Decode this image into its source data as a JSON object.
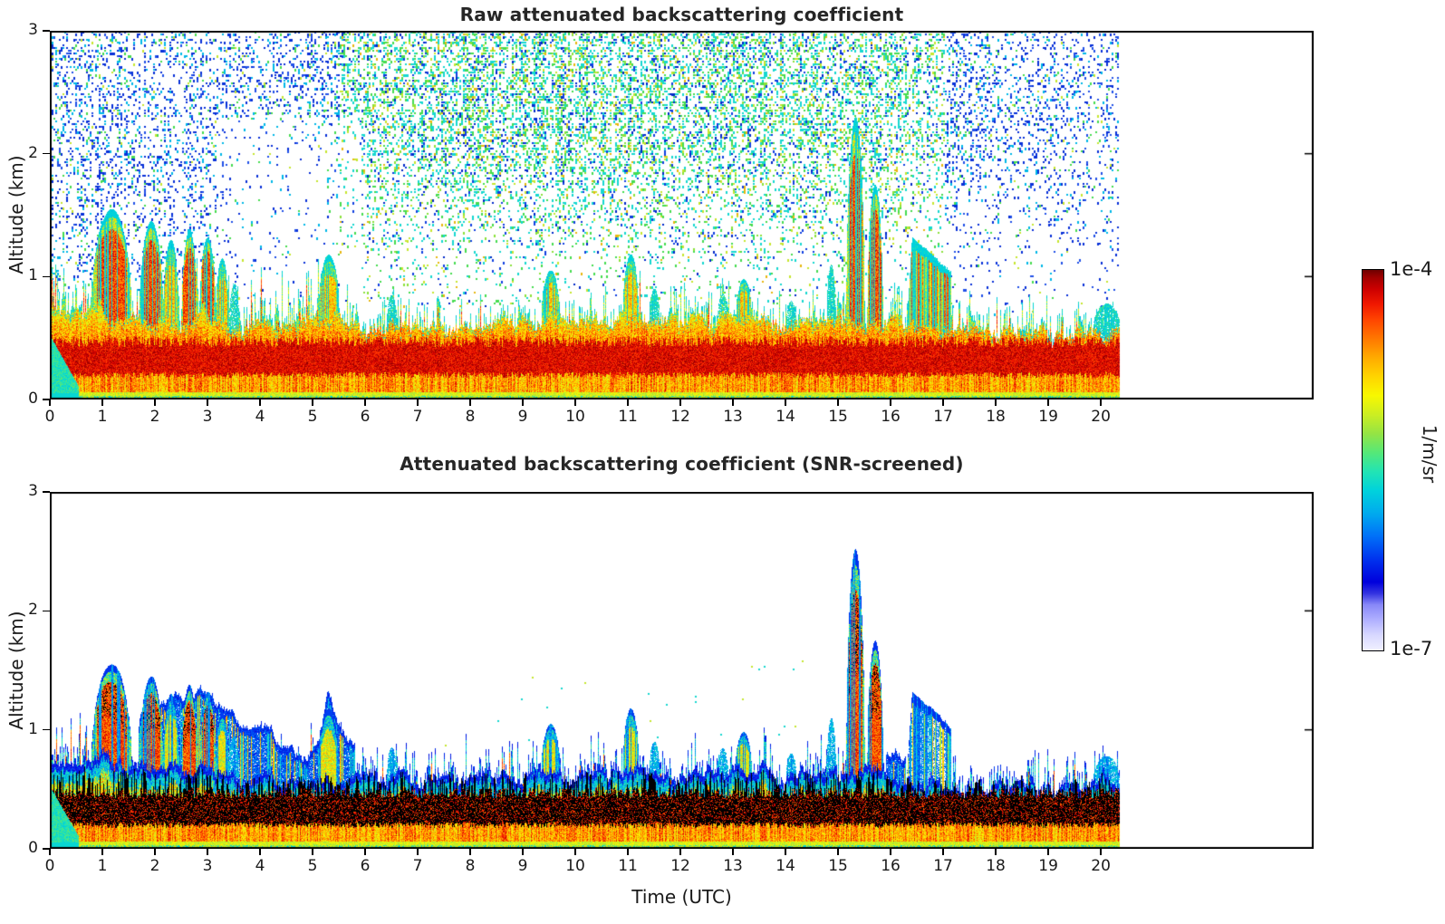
{
  "chart_data": {
    "type": "heatmap",
    "x_axis": {
      "label": "Time (UTC)",
      "ticks": [
        0,
        1,
        2,
        3,
        4,
        5,
        6,
        7,
        8,
        9,
        10,
        11,
        12,
        13,
        14,
        15,
        16,
        17,
        18,
        19,
        20
      ],
      "lim": [
        0,
        24.05
      ],
      "data_end_hour": 20.36
    },
    "y_axis": {
      "label": "Altitude (km)",
      "ticks": [
        0,
        1,
        2,
        3
      ],
      "lim": [
        0,
        3
      ]
    },
    "color_axis": {
      "max": "1e-4",
      "min": "1e-7",
      "unit": "1/m/sr",
      "scale": "log",
      "over_range_color": "#000000"
    },
    "panels": [
      {
        "id": "raw",
        "title": "Raw attenuated backscattering coefficient",
        "noise_speckle": true,
        "saturated_black": false
      },
      {
        "id": "screened",
        "title": "Attenuated backscattering coefficient (SNR-screened)",
        "noise_speckle": false,
        "saturated_black": true
      }
    ],
    "mixed_layer_top_km": [
      0.7,
      0.74,
      0.68,
      0.64,
      0.6,
      0.62,
      0.58,
      0.56,
      0.58,
      0.62,
      0.66,
      0.68,
      0.62,
      0.66,
      0.6,
      0.66,
      0.62,
      0.55,
      0.52,
      0.55,
      0.58,
      0.58,
      0.58,
      0.58,
      0.58
    ],
    "noise_density_by_hour": [
      0.3,
      0.34,
      0.3,
      0.26,
      0.25,
      0.35,
      0.45,
      0.48,
      0.5,
      0.52,
      0.52,
      0.5,
      0.48,
      0.48,
      0.52,
      0.48,
      0.42,
      0.32,
      0.26,
      0.26,
      0.22,
      0.22,
      0.22,
      0.22,
      0.22
    ],
    "surface_dark_band_km": [
      0.2,
      0.48
    ],
    "plumes": [
      {
        "t0": 0.8,
        "t1": 1.55,
        "top": 1.55,
        "kind": "strong"
      },
      {
        "t0": 1.7,
        "t1": 2.15,
        "top": 1.45,
        "kind": "strong"
      },
      {
        "t0": 2.15,
        "t1": 2.45,
        "top": 1.3,
        "kind": "medium"
      },
      {
        "t0": 2.5,
        "t1": 2.8,
        "top": 1.38,
        "kind": "strong"
      },
      {
        "t0": 2.85,
        "t1": 3.15,
        "top": 1.32,
        "kind": "strong"
      },
      {
        "t0": 3.15,
        "t1": 3.4,
        "top": 1.15,
        "kind": "medium"
      },
      {
        "t0": 3.4,
        "t1": 3.6,
        "top": 0.95,
        "kind": "cyan"
      },
      {
        "t0": 5.1,
        "t1": 5.5,
        "top": 1.18,
        "kind": "medium"
      },
      {
        "t0": 6.4,
        "t1": 6.6,
        "top": 0.85,
        "kind": "cyan"
      },
      {
        "t0": 9.35,
        "t1": 9.7,
        "top": 1.05,
        "kind": "medium"
      },
      {
        "t0": 10.9,
        "t1": 11.2,
        "top": 1.18,
        "kind": "medium"
      },
      {
        "t0": 11.4,
        "t1": 11.6,
        "top": 0.9,
        "kind": "cyan"
      },
      {
        "t0": 12.7,
        "t1": 12.9,
        "top": 0.85,
        "kind": "cyan"
      },
      {
        "t0": 13.05,
        "t1": 13.35,
        "top": 0.98,
        "kind": "medium"
      },
      {
        "t0": 14.0,
        "t1": 14.2,
        "top": 0.8,
        "kind": "cyan"
      },
      {
        "t0": 14.78,
        "t1": 14.95,
        "top": 1.1,
        "kind": "cyan"
      },
      {
        "t0": 15.15,
        "t1": 15.5,
        "top": 2.3,
        "top2": 2.52,
        "kind": "strong"
      },
      {
        "t0": 15.55,
        "t1": 15.85,
        "top": 1.75,
        "kind": "strong"
      },
      {
        "t0": 16.3,
        "t1": 17.15,
        "top": 1.32,
        "kind": "dome"
      },
      {
        "t0": 19.85,
        "t1": 20.36,
        "top": 0.78,
        "kind": "cyan"
      }
    ],
    "screened_blue_fill": [
      {
        "t": [
          1.7,
          5.8
        ],
        "top_pts": [
          [
            1.7,
            1.1
          ],
          [
            2.0,
            1.2
          ],
          [
            2.4,
            1.25
          ],
          [
            2.8,
            1.3
          ],
          [
            3.2,
            1.2
          ],
          [
            3.6,
            1.1
          ],
          [
            4.0,
            1.0
          ],
          [
            4.4,
            0.95
          ],
          [
            4.8,
            0.8
          ],
          [
            5.1,
            0.95
          ],
          [
            5.3,
            1.35
          ],
          [
            5.5,
            1.1
          ],
          [
            5.8,
            0.85
          ]
        ]
      },
      {
        "t": [
          15.9,
          16.28
        ],
        "top_pts": [
          [
            15.9,
            0.8
          ],
          [
            16.1,
            0.86
          ],
          [
            16.28,
            0.8
          ]
        ]
      }
    ],
    "colormap_stops": [
      [
        0.0,
        "#f0f0ff"
      ],
      [
        0.04,
        "#d8d8ff"
      ],
      [
        0.08,
        "#b0b0ff"
      ],
      [
        0.12,
        "#8888f8"
      ],
      [
        0.15,
        "#3333e0"
      ],
      [
        0.18,
        "#0000dc"
      ],
      [
        0.24,
        "#0033ee"
      ],
      [
        0.3,
        "#0070f8"
      ],
      [
        0.36,
        "#00aaee"
      ],
      [
        0.42,
        "#00d2dc"
      ],
      [
        0.47,
        "#22e4b4"
      ],
      [
        0.52,
        "#55e878"
      ],
      [
        0.57,
        "#95e444"
      ],
      [
        0.62,
        "#ccee22"
      ],
      [
        0.67,
        "#f8f800"
      ],
      [
        0.72,
        "#ffd400"
      ],
      [
        0.77,
        "#ffaa00"
      ],
      [
        0.82,
        "#ff7700"
      ],
      [
        0.87,
        "#ff4400"
      ],
      [
        0.91,
        "#f01800"
      ],
      [
        0.95,
        "#cc0000"
      ],
      [
        0.98,
        "#a00000"
      ],
      [
        1.0,
        "#6e0000"
      ]
    ]
  }
}
